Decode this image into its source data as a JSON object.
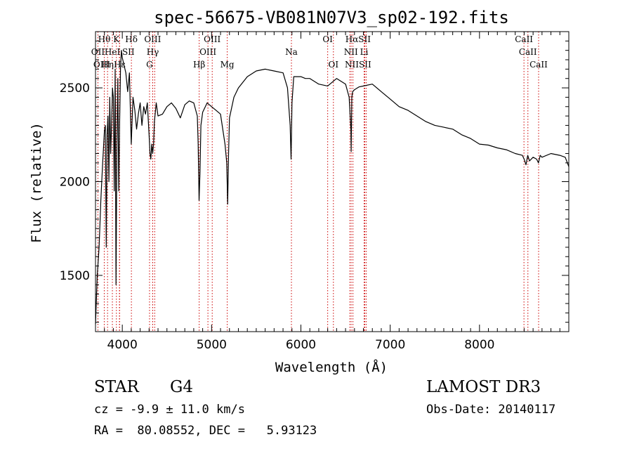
{
  "chart_data": {
    "type": "line",
    "title": "spec-56675-VB081N07V3_sp02-192.fits",
    "xlabel": "Wavelength (Å)",
    "ylabel": "Flux (relative)",
    "xlim": [
      3700,
      9000
    ],
    "ylim": [
      1200,
      2800
    ],
    "xticks": [
      4000,
      5000,
      6000,
      7000,
      8000
    ],
    "yticks": [
      1500,
      2000,
      2500
    ],
    "grid": false,
    "series": [
      {
        "name": "spectrum",
        "x": [
          3700,
          3720,
          3740,
          3760,
          3780,
          3800,
          3810,
          3820,
          3830,
          3840,
          3850,
          3860,
          3870,
          3880,
          3890,
          3900,
          3910,
          3920,
          3930,
          3940,
          3950,
          3960,
          3970,
          3980,
          3990,
          4000,
          4020,
          4040,
          4060,
          4080,
          4100,
          4120,
          4140,
          4160,
          4180,
          4200,
          4220,
          4240,
          4260,
          4280,
          4300,
          4310,
          4320,
          4330,
          4340,
          4350,
          4360,
          4380,
          4400,
          4450,
          4500,
          4550,
          4600,
          4650,
          4700,
          4750,
          4800,
          4840,
          4850,
          4860,
          4870,
          4880,
          4900,
          4950,
          5000,
          5050,
          5100,
          5150,
          5170,
          5180,
          5190,
          5200,
          5250,
          5300,
          5400,
          5500,
          5600,
          5700,
          5800,
          5850,
          5880,
          5890,
          5895,
          5900,
          5920,
          6000,
          6050,
          6100,
          6200,
          6300,
          6400,
          6500,
          6540,
          6560,
          6563,
          6570,
          6580,
          6600,
          6650,
          6700,
          6800,
          6900,
          7000,
          7100,
          7200,
          7300,
          7400,
          7500,
          7600,
          7700,
          7800,
          7900,
          8000,
          8100,
          8200,
          8300,
          8400,
          8480,
          8500,
          8520,
          8540,
          8560,
          8600,
          8640,
          8660,
          8680,
          8700,
          8800,
          8900,
          8960,
          9000
        ],
        "y": [
          1240,
          1500,
          1650,
          1900,
          2100,
          2270,
          2300,
          1650,
          2250,
          2350,
          2000,
          2450,
          2150,
          2300,
          2500,
          2450,
          1950,
          2600,
          1450,
          2200,
          2550,
          1950,
          2300,
          2600,
          2700,
          2660,
          2620,
          2580,
          2480,
          2580,
          2200,
          2450,
          2380,
          2280,
          2360,
          2420,
          2300,
          2400,
          2360,
          2420,
          2250,
          2150,
          2120,
          2200,
          2150,
          2200,
          2320,
          2420,
          2350,
          2360,
          2400,
          2420,
          2390,
          2340,
          2410,
          2430,
          2420,
          2350,
          2200,
          1900,
          2050,
          2300,
          2370,
          2420,
          2400,
          2380,
          2360,
          2200,
          2100,
          1880,
          2150,
          2340,
          2450,
          2500,
          2560,
          2590,
          2600,
          2590,
          2580,
          2500,
          2300,
          2120,
          2250,
          2420,
          2560,
          2560,
          2550,
          2550,
          2520,
          2510,
          2550,
          2520,
          2450,
          2280,
          2160,
          2450,
          2480,
          2490,
          2505,
          2510,
          2520,
          2480,
          2440,
          2400,
          2380,
          2350,
          2320,
          2300,
          2290,
          2280,
          2250,
          2230,
          2200,
          2195,
          2180,
          2170,
          2150,
          2140,
          2120,
          2090,
          2140,
          2110,
          2130,
          2120,
          2100,
          2140,
          2130,
          2150,
          2140,
          2130,
          2080
        ]
      }
    ],
    "lines": [
      {
        "name": "O II",
        "wavelength": 3727
      },
      {
        "name": "Hθ",
        "wavelength": 3798
      },
      {
        "name": "Hη",
        "wavelength": 3835
      },
      {
        "name": "Hζ",
        "wavelength": 3889
      },
      {
        "name": "K",
        "wavelength": 3934
      },
      {
        "name": "H",
        "wavelength": 3968
      },
      {
        "name": "Hε",
        "wavelength": 3970
      },
      {
        "name": "Hδ",
        "wavelength": 4102
      },
      {
        "name": "O III",
        "wavelength": 4340
      },
      {
        "name": "G",
        "wavelength": 4305
      },
      {
        "name": "Hγ",
        "wavelength": 4341
      },
      {
        "name": "O III",
        "wavelength": 4363
      },
      {
        "name": "Hβ",
        "wavelength": 4861
      },
      {
        "name": "O III",
        "wavelength": 4959
      },
      {
        "name": "O III",
        "wavelength": 5007
      },
      {
        "name": "Mg",
        "wavelength": 5175
      },
      {
        "name": "Na",
        "wavelength": 5894
      },
      {
        "name": "O I",
        "wavelength": 6300
      },
      {
        "name": "O I",
        "wavelength": 6364
      },
      {
        "name": "N II",
        "wavelength": 6548
      },
      {
        "name": "Hα",
        "wavelength": 6563
      },
      {
        "name": "N II",
        "wavelength": 6583
      },
      {
        "name": "Li",
        "wavelength": 6708
      },
      {
        "name": "S II",
        "wavelength": 6716
      },
      {
        "name": "S II",
        "wavelength": 6731
      },
      {
        "name": "Ca II",
        "wavelength": 8498
      },
      {
        "name": "Ca II",
        "wavelength": 8542
      },
      {
        "name": "Ca II",
        "wavelength": 8662
      }
    ],
    "line_labels": [
      {
        "text": "Hθ",
        "wavelength": 3798,
        "row": 0
      },
      {
        "text": "K",
        "wavelength": 3934,
        "row": 0
      },
      {
        "text": "Hδ",
        "wavelength": 4102,
        "row": 0
      },
      {
        "text": "OIII",
        "wavelength": 4340,
        "row": 0
      },
      {
        "text": "OIII",
        "wavelength": 5007,
        "row": 0
      },
      {
        "text": "OI",
        "wavelength": 6300,
        "row": 0
      },
      {
        "text": "HαSII",
        "wavelength": 6640,
        "row": 0
      },
      {
        "text": "CaII",
        "wavelength": 8498,
        "row": 0
      },
      {
        "text": "OII",
        "wavelength": 3727,
        "row": 1
      },
      {
        "text": "HeI",
        "wavelength": 3889,
        "row": 1
      },
      {
        "text": "SII",
        "wavelength": 4068,
        "row": 1
      },
      {
        "text": "Hγ",
        "wavelength": 4341,
        "row": 1
      },
      {
        "text": "OIII",
        "wavelength": 4959,
        "row": 1
      },
      {
        "text": "Na",
        "wavelength": 5894,
        "row": 1
      },
      {
        "text": "NII",
        "wavelength": 6560,
        "row": 1
      },
      {
        "text": "Li",
        "wavelength": 6708,
        "row": 1
      },
      {
        "text": "CaII",
        "wavelength": 8542,
        "row": 1
      },
      {
        "text": "OIII",
        "wavelength": 3770,
        "row": 2
      },
      {
        "text": "Hη",
        "wavelength": 3835,
        "row": 2
      },
      {
        "text": "Hε",
        "wavelength": 3970,
        "row": 2
      },
      {
        "text": "G",
        "wavelength": 4305,
        "row": 2
      },
      {
        "text": "Hβ",
        "wavelength": 4861,
        "row": 2
      },
      {
        "text": "Mg",
        "wavelength": 5175,
        "row": 2
      },
      {
        "text": "OI",
        "wavelength": 6364,
        "row": 2
      },
      {
        "text": "NIISII",
        "wavelength": 6640,
        "row": 2
      },
      {
        "text": "CaII",
        "wavelength": 8662,
        "row": 2
      }
    ]
  },
  "info": {
    "object_class": "STAR",
    "subclass": "G4",
    "survey": "LAMOST DR3",
    "redshift": "cz = -9.9 ± 11.0 km/s",
    "obs_date": "Obs-Date: 20140117",
    "coords": "RA =  80.08552, DEC =   5.93123"
  },
  "colors": {
    "spectrum": "#000000",
    "line_marker": "#cc0000",
    "axes": "#000000"
  }
}
